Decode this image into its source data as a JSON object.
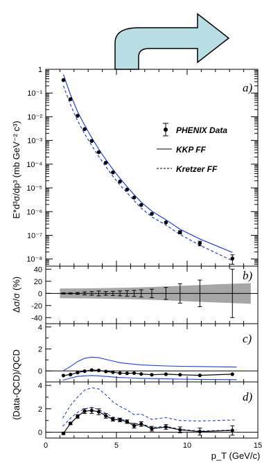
{
  "arrow": {
    "color": "#b8dde3",
    "stroke": "#000000"
  },
  "chart_data": [
    {
      "panel": "a",
      "type": "scatter",
      "label": "a)",
      "ylabel": "E*d³σ/dp³ (mb GeV⁻² c³)",
      "yscale": "log",
      "ylim": [
        5e-09,
        1
      ],
      "xlim": [
        0,
        15
      ],
      "y_ticks": [
        "1",
        "10⁻¹",
        "10⁻²",
        "10⁻³",
        "10⁻⁴",
        "10⁻⁵",
        "10⁻⁶",
        "10⁻⁷",
        "10⁻⁸"
      ],
      "legend": [
        "PHENIX Data",
        "KKP FF",
        "Kretzer FF"
      ],
      "data": {
        "x": [
          1.25,
          1.75,
          2.25,
          2.75,
          3.25,
          3.75,
          4.25,
          4.75,
          5.25,
          5.75,
          6.25,
          6.75,
          7.5,
          8.5,
          9.5,
          10.9,
          13.2
        ],
        "y": [
          0.35,
          0.055,
          0.011,
          0.003,
          0.00095,
          0.00032,
          0.000115,
          4.5e-05,
          1.85e-05,
          8.5e-06,
          3.9e-06,
          1.9e-06,
          8e-07,
          3.5e-07,
          1.35e-07,
          4.6e-08,
          1.05e-08
        ],
        "yerr_lo": [
          0,
          0,
          0,
          0,
          0,
          0,
          0,
          0,
          0,
          0,
          0,
          0,
          0,
          0,
          2e-08,
          1e-08,
          4.5e-09
        ],
        "yerr_hi": [
          0,
          0,
          0,
          0,
          0,
          0,
          0,
          0,
          0,
          0,
          0,
          0,
          0,
          0,
          2e-08,
          1e-08,
          4.5e-09
        ]
      },
      "kkp": {
        "x": [
          1.25,
          1.75,
          2.25,
          2.75,
          3.25,
          3.75,
          4.25,
          4.75,
          5.25,
          5.75,
          6.25,
          6.75,
          7.5,
          8.5,
          9.5,
          10.9,
          13.2
        ],
        "y": [
          0.6,
          0.085,
          0.0165,
          0.0044,
          0.0013,
          0.00043,
          0.000155,
          6e-05,
          2.5e-05,
          1.12e-05,
          5.2e-06,
          2.5e-06,
          1.05e-06,
          4.5e-07,
          1.8e-07,
          7e-08,
          1.9e-08
        ]
      },
      "kretzer": {
        "x": [
          1.25,
          1.75,
          2.25,
          2.75,
          3.25,
          3.75,
          4.25,
          4.75,
          5.25,
          5.75,
          6.25,
          6.75,
          7.5,
          8.5,
          9.5,
          10.9,
          13.2
        ],
        "y": [
          0.2,
          0.032,
          0.0068,
          0.0019,
          0.00062,
          0.00021,
          7.8e-05,
          3.1e-05,
          1.32e-05,
          6.2e-06,
          2.9e-06,
          1.4e-06,
          6e-07,
          2.7e-07,
          1.08e-07,
          3.8e-08,
          8.5e-09
        ]
      }
    },
    {
      "panel": "b",
      "type": "scatter",
      "label": "b)",
      "ylabel": "Δσ/σ (%)",
      "ylim": [
        -50,
        45
      ],
      "xlim": [
        0,
        15
      ],
      "y_ticks": [
        40,
        20,
        0,
        -20,
        -40
      ],
      "band_x": [
        1.0,
        3.5,
        6.0,
        8.0,
        10.0,
        12.0,
        14.5
      ],
      "band_half": [
        8,
        8.5,
        9.5,
        11,
        13,
        15,
        17
      ],
      "data": {
        "x": [
          1.25,
          1.75,
          2.25,
          2.75,
          3.25,
          3.75,
          4.25,
          4.75,
          5.25,
          5.75,
          6.25,
          6.75,
          7.5,
          8.5,
          9.5,
          10.9,
          13.2
        ],
        "y": [
          0,
          0,
          0,
          0,
          0,
          0,
          0,
          0,
          0,
          0,
          0,
          0,
          0,
          0,
          0,
          0,
          0
        ],
        "err": [
          1,
          1,
          1.5,
          2.5,
          3,
          4,
          3,
          3.5,
          4,
          4.5,
          5,
          6,
          7,
          10,
          16,
          22,
          40
        ]
      }
    },
    {
      "panel": "c",
      "type": "scatter",
      "label": "c)",
      "ylim": [
        -1,
        4.3
      ],
      "xlim": [
        0,
        15
      ],
      "y_ticks": [
        4,
        2,
        0
      ],
      "data": {
        "x": [
          1.25,
          1.75,
          2.25,
          2.75,
          3.25,
          3.75,
          4.25,
          4.75,
          5.25,
          5.75,
          6.25,
          6.75,
          7.5,
          8.5,
          9.5,
          10.9,
          13.2
        ],
        "y": [
          -0.42,
          -0.33,
          -0.15,
          -0.02,
          0.08,
          0.05,
          -0.05,
          -0.12,
          -0.2,
          -0.22,
          -0.2,
          -0.28,
          -0.35,
          -0.3,
          -0.35,
          -0.4,
          -0.3
        ]
      },
      "upper": {
        "x": [
          1.2,
          1.75,
          2.25,
          2.75,
          3.25,
          3.75,
          4.25,
          4.75,
          5.25,
          5.75,
          6.25,
          6.75,
          7.5,
          8.5,
          9.5,
          10.9,
          13.5
        ],
        "y": [
          0.0,
          0.4,
          0.85,
          1.15,
          1.25,
          1.2,
          1.05,
          0.9,
          0.75,
          0.68,
          0.6,
          0.55,
          0.5,
          0.45,
          0.42,
          0.4,
          0.35
        ]
      },
      "lower": {
        "x": [
          1.2,
          1.75,
          2.25,
          2.75,
          3.25,
          3.75,
          4.25,
          4.75,
          5.25,
          5.75,
          6.25,
          6.75,
          7.5,
          8.5,
          9.5,
          10.9,
          13.5
        ],
        "y": [
          -0.85,
          -0.65,
          -0.5,
          -0.45,
          -0.42,
          -0.45,
          -0.5,
          -0.55,
          -0.6,
          -0.62,
          -0.65,
          -0.68,
          -0.7,
          -0.72,
          -0.75,
          -0.77,
          -0.8
        ]
      }
    },
    {
      "panel": "d",
      "type": "scatter",
      "label": "d)",
      "ylim": [
        -0.5,
        4.3
      ],
      "xlim": [
        0,
        15
      ],
      "y_ticks": [
        4,
        2,
        0
      ],
      "xlabel": "p_T (GeV/c)",
      "x_ticks": [
        0,
        5,
        10,
        15
      ],
      "data": {
        "x": [
          1.25,
          1.75,
          2.25,
          2.75,
          3.25,
          3.75,
          4.25,
          4.75,
          5.25,
          5.75,
          6.25,
          6.75,
          7.5,
          8.5,
          9.5,
          10.9,
          13.2
        ],
        "y": [
          -0.1,
          0.75,
          1.35,
          1.8,
          1.85,
          1.75,
          1.4,
          1.1,
          1.05,
          0.9,
          0.55,
          0.7,
          0.3,
          0.45,
          0.2,
          0.05,
          0.15
        ],
        "err": [
          0.1,
          0.1,
          0.15,
          0.2,
          0.25,
          0.25,
          0.2,
          0.15,
          0.15,
          0.15,
          0.2,
          0.2,
          0.2,
          0.2,
          0.25,
          0.3,
          0.4
        ]
      },
      "upper": {
        "x": [
          1.2,
          1.75,
          2.25,
          2.75,
          3.25,
          3.75,
          4.25,
          4.75,
          5.25,
          5.75,
          6.25,
          6.75,
          7.5,
          8.5,
          9.5,
          10.9,
          13.5
        ],
        "y": [
          1.2,
          2.3,
          3.0,
          3.6,
          3.8,
          3.7,
          3.2,
          2.6,
          2.2,
          1.9,
          1.5,
          1.55,
          1.1,
          1.25,
          1.0,
          0.95,
          1.05
        ]
      },
      "lower": {
        "x": [
          1.2,
          1.75,
          2.25,
          2.75,
          3.25,
          3.75,
          4.25,
          4.75,
          5.25,
          5.75,
          6.25,
          6.75,
          7.5,
          8.5,
          9.5,
          10.9,
          13.5
        ],
        "y": [
          0.5,
          1.2,
          1.7,
          2.0,
          2.1,
          1.95,
          1.6,
          1.3,
          1.15,
          0.95,
          0.7,
          0.75,
          0.4,
          0.5,
          0.25,
          0.1,
          0.2
        ]
      }
    }
  ],
  "shared_ylabel_cd": "(Data-QCD)/QCD"
}
